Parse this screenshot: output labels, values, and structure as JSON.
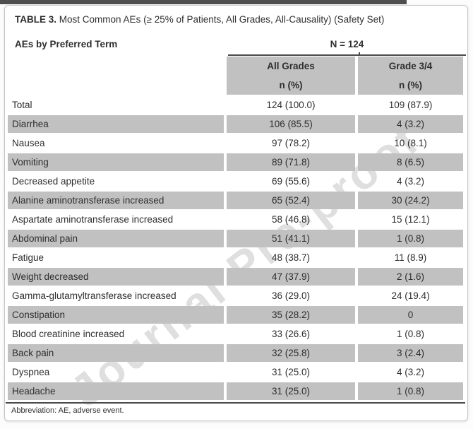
{
  "window": {
    "top_strip_color": "#4f4f4f"
  },
  "watermark": {
    "text": "Journal Pre-proof"
  },
  "table": {
    "title_label": "TABLE 3.",
    "title_text": "Most Common AEs (≥ 25% of Patients, All Grades, All-Causality) (Safety Set)",
    "stub_header": "AEs by Preferred Term",
    "n_header": "N = 124",
    "columns": [
      {
        "label": "All Grades",
        "sub_label": "n (%)"
      },
      {
        "label": "Grade 3/4",
        "sub_label": "n (%)"
      }
    ],
    "rows": [
      {
        "term": "Total",
        "all_grades": "124 (100.0)",
        "grade_3_4": "109 (87.9)",
        "shaded": false
      },
      {
        "term": "Diarrhea",
        "all_grades": "106 (85.5)",
        "grade_3_4": "4 (3.2)",
        "shaded": true
      },
      {
        "term": "Nausea",
        "all_grades": "97 (78.2)",
        "grade_3_4": "10 (8.1)",
        "shaded": false
      },
      {
        "term": "Vomiting",
        "all_grades": "89 (71.8)",
        "grade_3_4": "8 (6.5)",
        "shaded": true
      },
      {
        "term": "Decreased appetite",
        "all_grades": "69 (55.6)",
        "grade_3_4": "4 (3.2)",
        "shaded": false
      },
      {
        "term": "Alanine aminotransferase increased",
        "all_grades": "65 (52.4)",
        "grade_3_4": "30 (24.2)",
        "shaded": true
      },
      {
        "term": "Aspartate aminotransferase increased",
        "all_grades": "58 (46.8)",
        "grade_3_4": "15 (12.1)",
        "shaded": false
      },
      {
        "term": "Abdominal pain",
        "all_grades": "51 (41.1)",
        "grade_3_4": "1 (0.8)",
        "shaded": true
      },
      {
        "term": "Fatigue",
        "all_grades": "48 (38.7)",
        "grade_3_4": "11 (8.9)",
        "shaded": false
      },
      {
        "term": "Weight decreased",
        "all_grades": "47 (37.9)",
        "grade_3_4": "2 (1.6)",
        "shaded": true
      },
      {
        "term": "Gamma-glutamyltransferase increased",
        "all_grades": "36 (29.0)",
        "grade_3_4": "24 (19.4)",
        "shaded": false
      },
      {
        "term": "Constipation",
        "all_grades": "35 (28.2)",
        "grade_3_4": "0",
        "shaded": true
      },
      {
        "term": "Blood creatinine increased",
        "all_grades": "33 (26.6)",
        "grade_3_4": "1 (0.8)",
        "shaded": false
      },
      {
        "term": "Back pain",
        "all_grades": "32 (25.8)",
        "grade_3_4": "3 (2.4)",
        "shaded": true
      },
      {
        "term": "Dyspnea",
        "all_grades": "31 (25.0)",
        "grade_3_4": "4 (3.2)",
        "shaded": false
      },
      {
        "term": "Headache",
        "all_grades": "31 (25.0)",
        "grade_3_4": "1 (0.8)",
        "shaded": true
      }
    ],
    "footnote": "Abbreviation: AE, adverse event."
  },
  "colors": {
    "row_shade": "#c1c1c1",
    "header_shade": "#c1c1c1",
    "rule": "#4a4a4a",
    "text": "#2e2e2e",
    "card_border": "#c6c6c6"
  }
}
